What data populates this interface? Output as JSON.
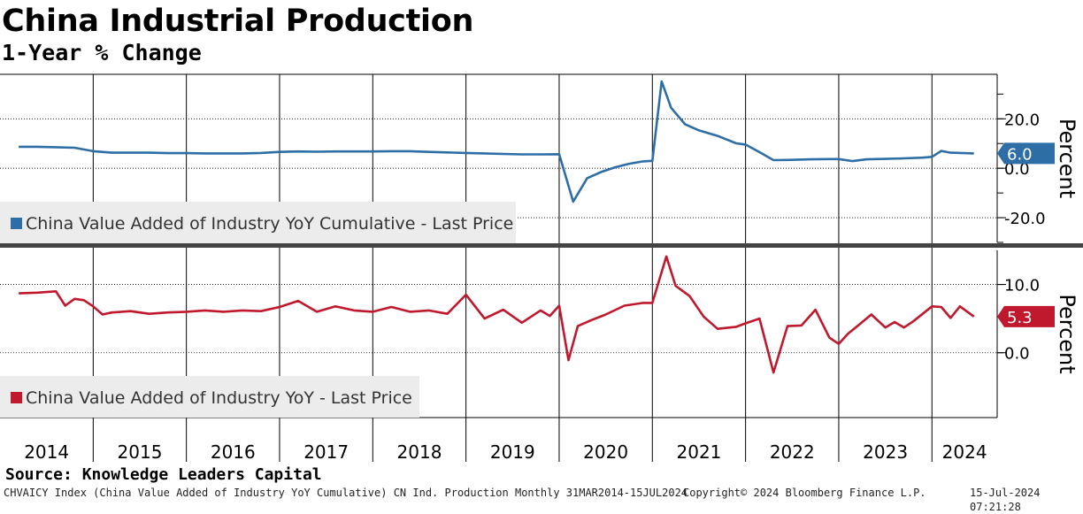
{
  "header": {
    "title": "China Industrial Production",
    "subtitle": "1-Year % Change"
  },
  "footer": {
    "source": "Source: Knowledge Leaders Capital",
    "ticker_info": "CHVAICY Index (China Value Added of Industry YoY Cumulative) CN Ind. Production  Monthly 31MAR2014-15JUL2024",
    "copyright": "Copyright© 2024 Bloomberg Finance L.P.",
    "timestamp": "15-Jul-2024 07:21:28"
  },
  "colors": {
    "blue": "#2e6ea6",
    "red": "#c0182c",
    "separator": "#444444",
    "legend_bg": "#ececec"
  },
  "chart_data": [
    {
      "type": "line",
      "panel": "top",
      "ylabel": "Percent",
      "ylim": [
        -30,
        38
      ],
      "yticks": [
        "20.0",
        "0.0",
        "-20.0"
      ],
      "ytick_values": [
        20,
        0,
        -20
      ],
      "legend": "China Value Added of Industry YoY Cumulative - Last Price",
      "last_value": "6.0",
      "x_start": 2014.2,
      "series": [
        {
          "name": "China Value Added of Industry YoY Cumulative - Last Price",
          "color": "#2e6ea6",
          "x": [
            2014.2,
            2014.4,
            2014.6,
            2014.8,
            2015.0,
            2015.2,
            2015.4,
            2015.6,
            2015.8,
            2016.0,
            2016.2,
            2016.4,
            2016.6,
            2016.8,
            2017.0,
            2017.2,
            2017.4,
            2017.6,
            2017.8,
            2018.0,
            2018.2,
            2018.4,
            2018.6,
            2018.8,
            2019.0,
            2019.2,
            2019.4,
            2019.6,
            2019.8,
            2020.0,
            2020.15,
            2020.3,
            2020.45,
            2020.6,
            2020.75,
            2020.9,
            2021.0,
            2021.1,
            2021.2,
            2021.35,
            2021.5,
            2021.7,
            2021.9,
            2022.0,
            2022.15,
            2022.3,
            2022.5,
            2022.7,
            2022.9,
            2023.0,
            2023.15,
            2023.3,
            2023.5,
            2023.7,
            2023.9,
            2024.0,
            2024.1,
            2024.2,
            2024.45
          ],
          "values": [
            8.7,
            8.7,
            8.5,
            8.3,
            6.9,
            6.3,
            6.3,
            6.3,
            6.1,
            6.1,
            6.0,
            6.0,
            6.0,
            6.2,
            6.6,
            6.8,
            6.7,
            6.8,
            6.8,
            6.8,
            6.9,
            6.9,
            6.6,
            6.4,
            6.2,
            6.0,
            5.8,
            5.6,
            5.6,
            5.7,
            -13.5,
            -4.0,
            -1.5,
            0.4,
            1.8,
            2.8,
            3.0,
            35.1,
            24.5,
            17.8,
            15.3,
            13.1,
            10.1,
            9.6,
            6.5,
            3.3,
            3.4,
            3.6,
            3.7,
            3.7,
            2.9,
            3.6,
            3.8,
            4.0,
            4.3,
            4.6,
            7.0,
            6.3,
            6.0
          ]
        }
      ]
    },
    {
      "type": "line",
      "panel": "bottom",
      "ylabel": "Percent",
      "ylim": [
        -9.5,
        15
      ],
      "yticks": [
        "10.0",
        "0.0"
      ],
      "ytick_values": [
        10,
        0
      ],
      "legend": "China Value Added of Industry YoY - Last Price",
      "last_value": "5.3",
      "x_start": 2014.2,
      "series": [
        {
          "name": "China Value Added of Industry YoY - Last Price",
          "color": "#c0182c",
          "x": [
            2014.2,
            2014.4,
            2014.6,
            2014.7,
            2014.8,
            2014.9,
            2015.0,
            2015.1,
            2015.2,
            2015.4,
            2015.6,
            2015.8,
            2016.0,
            2016.2,
            2016.4,
            2016.6,
            2016.8,
            2017.0,
            2017.2,
            2017.4,
            2017.6,
            2017.8,
            2018.0,
            2018.2,
            2018.4,
            2018.6,
            2018.8,
            2019.0,
            2019.2,
            2019.4,
            2019.6,
            2019.8,
            2019.9,
            2020.0,
            2020.1,
            2020.2,
            2020.35,
            2020.5,
            2020.7,
            2020.9,
            2021.0,
            2021.15,
            2021.25,
            2021.4,
            2021.55,
            2021.7,
            2021.9,
            2022.0,
            2022.15,
            2022.3,
            2022.45,
            2022.6,
            2022.75,
            2022.9,
            2023.0,
            2023.1,
            2023.2,
            2023.35,
            2023.5,
            2023.6,
            2023.7,
            2023.8,
            2024.0,
            2024.1,
            2024.2,
            2024.3,
            2024.45
          ],
          "values": [
            8.7,
            8.8,
            9.0,
            6.9,
            7.9,
            7.7,
            6.8,
            5.6,
            5.9,
            6.1,
            5.7,
            5.9,
            6.0,
            6.2,
            6.0,
            6.2,
            6.1,
            6.7,
            7.6,
            6.0,
            6.8,
            6.2,
            6.0,
            6.7,
            6.0,
            6.2,
            5.7,
            8.5,
            5.0,
            6.3,
            4.4,
            6.2,
            5.4,
            6.9,
            -1.1,
            3.9,
            4.8,
            5.6,
            6.9,
            7.3,
            7.3,
            14.1,
            9.8,
            8.3,
            5.3,
            3.5,
            3.8,
            4.3,
            5.0,
            -2.9,
            3.9,
            4.0,
            6.3,
            2.2,
            1.3,
            2.8,
            3.9,
            5.6,
            3.7,
            4.5,
            3.7,
            4.6,
            6.8,
            6.7,
            5.1,
            6.8,
            5.3
          ]
        }
      ]
    }
  ],
  "x_axis": {
    "years": [
      "2014",
      "2015",
      "2016",
      "2017",
      "2018",
      "2019",
      "2020",
      "2021",
      "2022",
      "2023",
      "2024"
    ],
    "range": [
      2014.0,
      2024.7
    ]
  }
}
